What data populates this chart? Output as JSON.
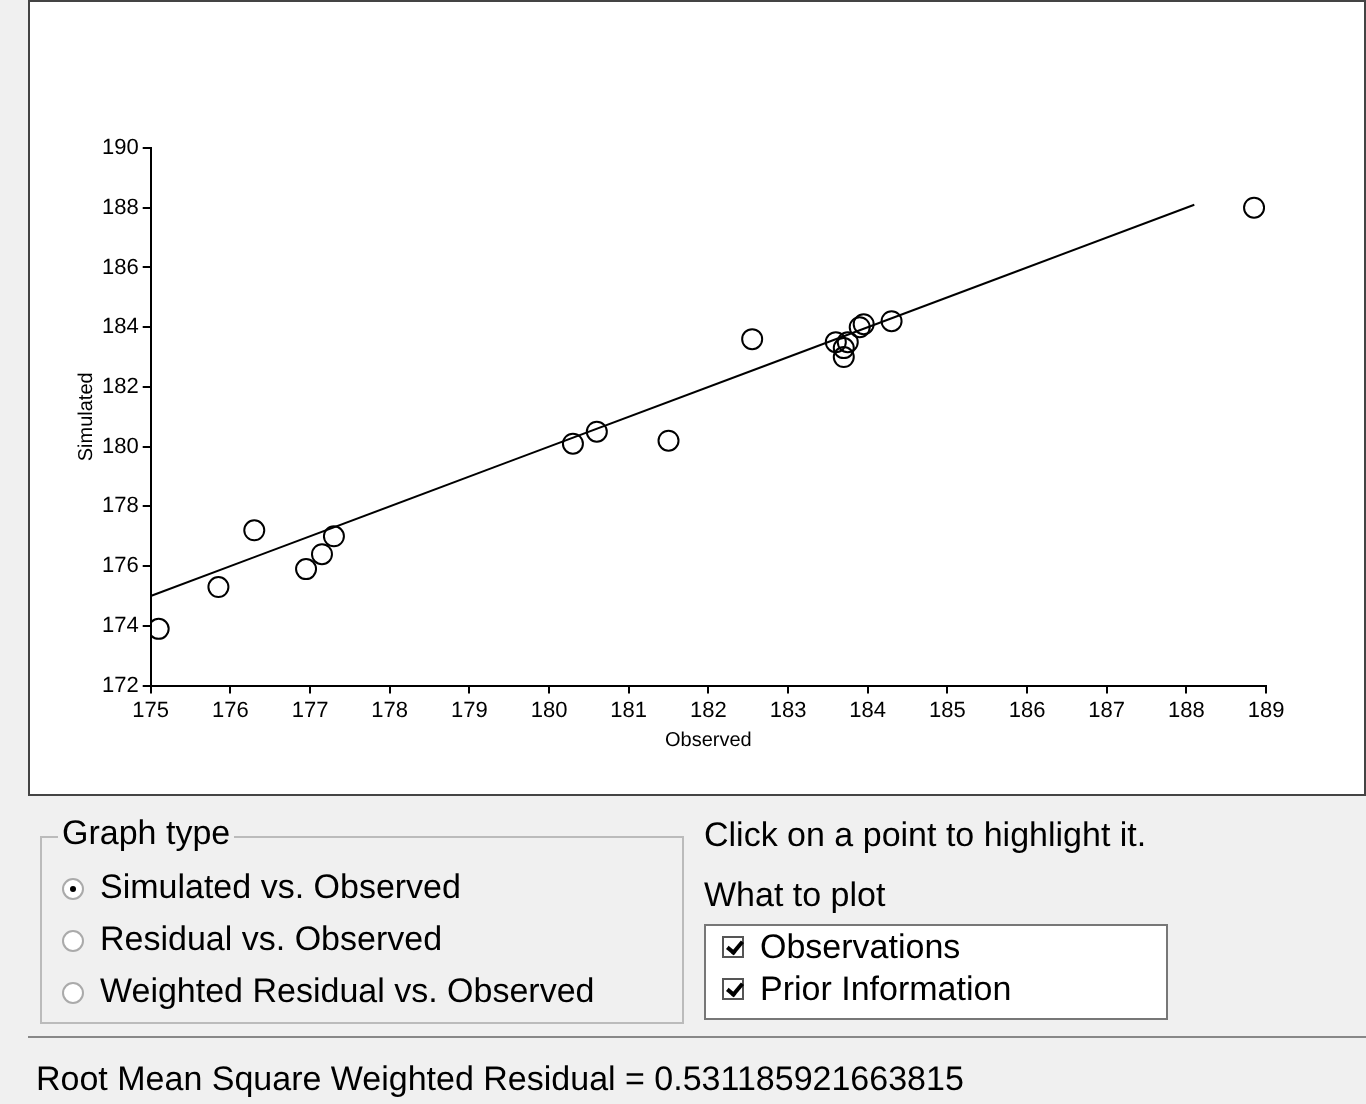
{
  "chart_data": {
    "type": "scatter",
    "xlabel": "Observed",
    "ylabel": "Simulated",
    "xlim": [
      175,
      189
    ],
    "xticks": [
      175,
      176,
      177,
      178,
      179,
      180,
      181,
      182,
      183,
      184,
      185,
      186,
      187,
      188,
      189
    ],
    "ylim": [
      172,
      190
    ],
    "yticks": [
      172,
      174,
      176,
      178,
      180,
      182,
      184,
      186,
      188,
      190
    ],
    "grid": false,
    "legend": false,
    "marker": "circle",
    "series": [
      {
        "type": "scatter",
        "color": "#000000",
        "x": [
          175.1,
          175.85,
          176.3,
          176.95,
          177.15,
          177.3,
          180.3,
          180.6,
          181.5,
          182.55,
          183.6,
          183.7,
          183.7,
          183.75,
          183.9,
          183.95,
          184.3,
          188.85
        ],
        "values": [
          173.9,
          175.3,
          177.2,
          175.9,
          176.4,
          177.0,
          180.1,
          180.5,
          180.2,
          183.6,
          183.5,
          183.0,
          183.3,
          183.5,
          184.0,
          184.1,
          184.2,
          188.0
        ]
      },
      {
        "type": "line",
        "color": "#000000",
        "marker": "none",
        "x": [
          175,
          188.1
        ],
        "values": [
          175,
          188.1
        ]
      }
    ],
    "annotations": [
      "Graph type",
      "Simulated vs. Observed",
      "Residual vs. Observed",
      "Weighted Residual vs. Observed",
      "Click on a point to highlight it.",
      "What to plot",
      "Observations",
      "Prior Information",
      "Root Mean Square Weighted Residual = 0.531185921663815"
    ]
  }
}
